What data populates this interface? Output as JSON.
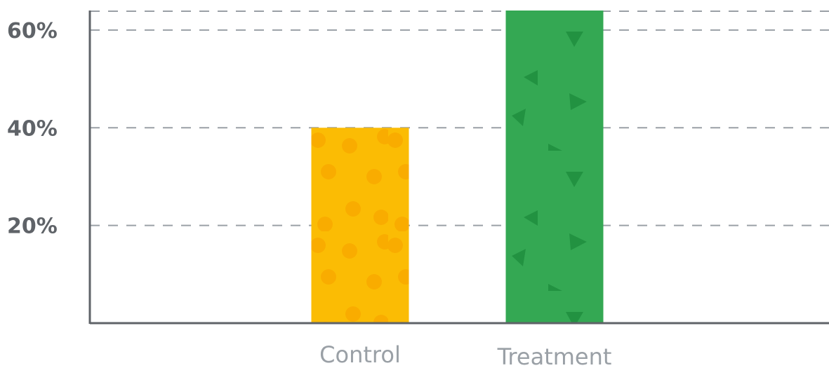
{
  "chart_data": {
    "type": "bar",
    "categories": [
      "Control",
      "Treatment"
    ],
    "values": [
      40,
      64
    ],
    "ylim": [
      0,
      64
    ],
    "yticks": [
      20,
      40,
      60
    ],
    "ytick_labels": [
      "20%",
      "40%",
      "60%"
    ],
    "grid": true,
    "colors": {
      "Control": "#fbbc04",
      "Treatment": "#34a853",
      "control_pattern": "#f9ab00",
      "treatment_pattern": "#1e8e3e",
      "axis": "#5f6368",
      "grid": "#9aa0a6"
    }
  }
}
